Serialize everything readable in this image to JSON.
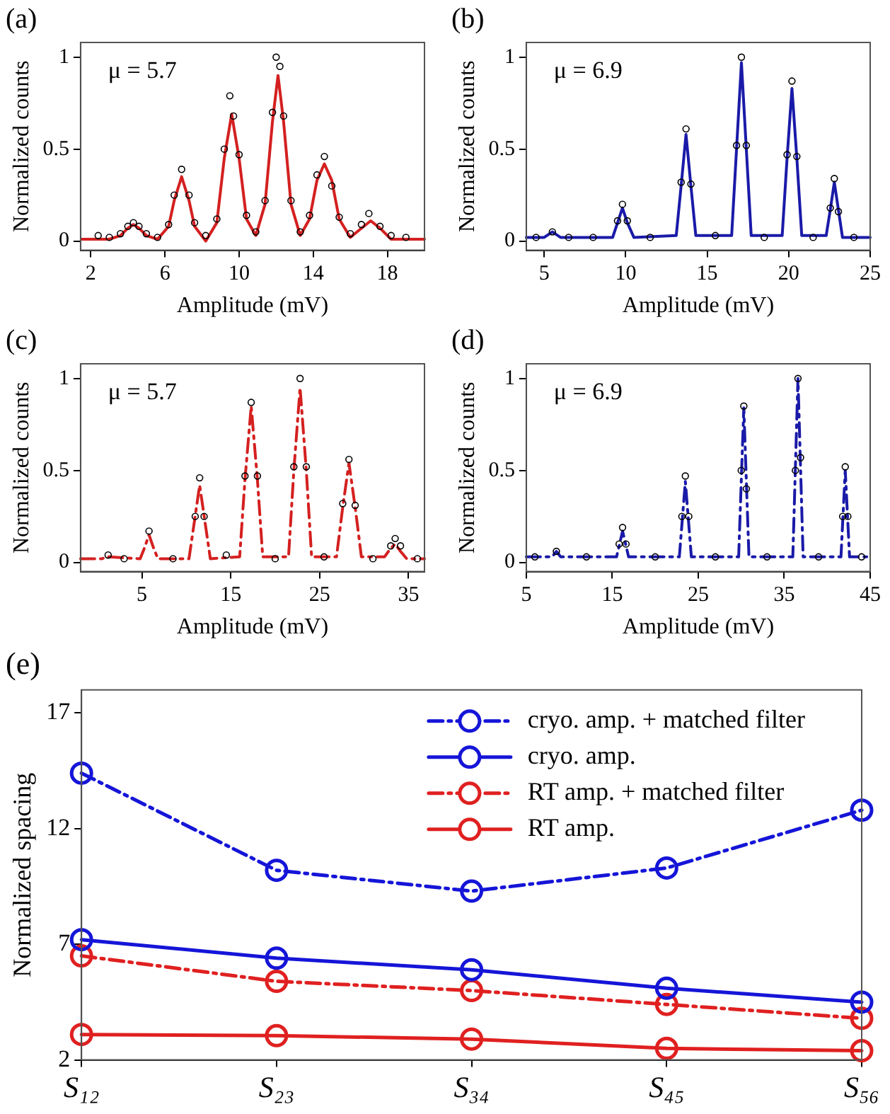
{
  "chart_data": [
    {
      "type": "line",
      "title": "(a)",
      "xlabel": "Amplitude (mV)",
      "ylabel": "Normalized counts",
      "annotations": [
        "μ = 5.7"
      ],
      "xlim": [
        1.45,
        20
      ],
      "xticks": [
        2,
        6,
        10,
        14,
        18
      ],
      "ylim": [
        -0.05,
        1.08
      ],
      "yticks": [
        0,
        0.5,
        1
      ],
      "series": [
        {
          "type": "scatter",
          "color": "#000000",
          "marker": "circle",
          "x": [
            2.4,
            3.0,
            3.6,
            4.0,
            4.3,
            4.6,
            5.0,
            5.6,
            6.2,
            6.5,
            6.9,
            7.3,
            7.6,
            8.2,
            8.8,
            9.2,
            9.5,
            9.7,
            10.0,
            10.4,
            10.9,
            11.4,
            11.8,
            12.0,
            12.2,
            12.4,
            12.8,
            13.3,
            13.8,
            14.2,
            14.6,
            15.0,
            15.4,
            16.0,
            16.6,
            17.0,
            17.6,
            18.2,
            19.0
          ],
          "values": [
            0.03,
            0.02,
            0.04,
            0.08,
            0.1,
            0.08,
            0.04,
            0.02,
            0.09,
            0.25,
            0.39,
            0.25,
            0.1,
            0.03,
            0.12,
            0.5,
            0.79,
            0.68,
            0.47,
            0.14,
            0.05,
            0.22,
            0.7,
            1.0,
            0.95,
            0.68,
            0.22,
            0.05,
            0.14,
            0.36,
            0.46,
            0.3,
            0.13,
            0.04,
            0.09,
            0.15,
            0.08,
            0.03,
            0.02
          ]
        },
        {
          "type": "line",
          "color": "#d42020",
          "marker": "none",
          "line_style": "solid",
          "x": [
            1.5,
            3.0,
            3.6,
            4.0,
            4.3,
            4.6,
            5.0,
            5.6,
            6.2,
            6.5,
            6.9,
            7.3,
            7.6,
            8.2,
            8.8,
            9.2,
            9.6,
            10.0,
            10.4,
            10.9,
            11.4,
            11.8,
            12.1,
            12.4,
            12.8,
            13.3,
            13.8,
            14.2,
            14.6,
            15.0,
            15.4,
            16.0,
            16.6,
            17.1,
            17.6,
            18.2,
            20
          ],
          "values": [
            0.01,
            0.01,
            0.03,
            0.07,
            0.09,
            0.07,
            0.03,
            0.01,
            0.08,
            0.22,
            0.35,
            0.22,
            0.08,
            0.0,
            0.1,
            0.45,
            0.69,
            0.45,
            0.12,
            0.03,
            0.2,
            0.65,
            0.9,
            0.65,
            0.2,
            0.03,
            0.12,
            0.33,
            0.42,
            0.33,
            0.12,
            0.02,
            0.07,
            0.11,
            0.07,
            0.01,
            0.01
          ]
        }
      ]
    },
    {
      "type": "line",
      "title": "(b)",
      "xlabel": "Amplitude (mV)",
      "ylabel": "Normalized counts",
      "annotations": [
        "μ = 6.9"
      ],
      "xlim": [
        3.9,
        25
      ],
      "xticks": [
        5,
        10,
        15,
        20,
        25
      ],
      "ylim": [
        -0.05,
        1.08
      ],
      "yticks": [
        0,
        0.5,
        1
      ],
      "series": [
        {
          "type": "scatter",
          "color": "#000000",
          "marker": "circle",
          "x": [
            4.5,
            5.5,
            6.5,
            8.0,
            9.5,
            9.8,
            10.1,
            11.5,
            13.4,
            13.7,
            14.0,
            15.5,
            16.8,
            17.1,
            17.4,
            18.5,
            19.9,
            20.2,
            20.5,
            21.5,
            22.55,
            22.8,
            23.05,
            24
          ],
          "values": [
            0.02,
            0.05,
            0.02,
            0.02,
            0.11,
            0.2,
            0.11,
            0.02,
            0.32,
            0.61,
            0.31,
            0.03,
            0.52,
            1.0,
            0.52,
            0.02,
            0.47,
            0.87,
            0.46,
            0.02,
            0.18,
            0.34,
            0.16,
            0.02
          ]
        },
        {
          "type": "line",
          "color": "#1a1aa8",
          "marker": "none",
          "line_style": "solid",
          "x": [
            3.9,
            5.0,
            5.5,
            6.0,
            9.2,
            9.5,
            9.8,
            10.1,
            10.5,
            13.1,
            13.4,
            13.7,
            14.0,
            14.3,
            16.5,
            16.8,
            17.1,
            17.4,
            17.7,
            19.6,
            19.9,
            20.2,
            20.5,
            20.8,
            22.3,
            22.55,
            22.8,
            23.05,
            23.3,
            25
          ],
          "values": [
            0.02,
            0.02,
            0.05,
            0.02,
            0.02,
            0.1,
            0.18,
            0.1,
            0.02,
            0.03,
            0.3,
            0.58,
            0.3,
            0.03,
            0.03,
            0.5,
            0.97,
            0.5,
            0.03,
            0.03,
            0.45,
            0.83,
            0.45,
            0.03,
            0.03,
            0.17,
            0.32,
            0.17,
            0.02,
            0.02
          ]
        }
      ]
    },
    {
      "type": "line",
      "title": "(c)",
      "xlabel": "Amplitude (mV)",
      "ylabel": "Normalized counts",
      "annotations": [
        "μ = 5.7"
      ],
      "xlim": [
        -1.9,
        36.8
      ],
      "xticks": [
        5,
        15,
        25,
        35
      ],
      "ylim": [
        -0.05,
        1.08
      ],
      "yticks": [
        0,
        0.5,
        1
      ],
      "series": [
        {
          "type": "scatter",
          "color": "#000000",
          "marker": "circle",
          "x": [
            1.2,
            3.0,
            5.8,
            8.5,
            11.0,
            11.5,
            12.0,
            14.5,
            16.6,
            17.3,
            18.0,
            20.0,
            22.1,
            22.8,
            23.5,
            25.5,
            27.6,
            28.3,
            29.0,
            31.0,
            33.0,
            33.5,
            34.1,
            36
          ],
          "values": [
            0.04,
            0.02,
            0.17,
            0.02,
            0.25,
            0.46,
            0.25,
            0.04,
            0.47,
            0.87,
            0.47,
            0.02,
            0.52,
            1.0,
            0.52,
            0.03,
            0.32,
            0.56,
            0.31,
            0.02,
            0.09,
            0.13,
            0.09,
            0.02
          ]
        },
        {
          "type": "line",
          "color": "#d42020",
          "marker": "none",
          "line_style": "dashdot",
          "x": [
            -1.9,
            0.5,
            1.2,
            4.8,
            5.3,
            5.8,
            6.3,
            6.8,
            10.3,
            10.9,
            11.5,
            12.1,
            12.7,
            16.0,
            16.6,
            17.3,
            18.0,
            18.6,
            21.5,
            22.1,
            22.8,
            23.5,
            24.1,
            26.9,
            27.6,
            28.3,
            29.0,
            29.7,
            32.3,
            32.9,
            33.5,
            34.1,
            34.8,
            36.8
          ],
          "values": [
            0.02,
            0.02,
            0.03,
            0.02,
            0.08,
            0.15,
            0.08,
            0.02,
            0.02,
            0.22,
            0.42,
            0.22,
            0.02,
            0.03,
            0.45,
            0.85,
            0.45,
            0.03,
            0.03,
            0.5,
            0.95,
            0.5,
            0.03,
            0.03,
            0.3,
            0.54,
            0.3,
            0.03,
            0.03,
            0.07,
            0.1,
            0.06,
            0.02,
            0.02
          ]
        }
      ]
    },
    {
      "type": "line",
      "title": "(d)",
      "xlabel": "Amplitude (mV)",
      "ylabel": "Normalized counts",
      "annotations": [
        "μ = 6.9"
      ],
      "xlim": [
        5,
        45
      ],
      "xticks": [
        5,
        15,
        25,
        35,
        45
      ],
      "ylim": [
        -0.05,
        1.08
      ],
      "yticks": [
        0,
        0.5,
        1
      ],
      "series": [
        {
          "type": "scatter",
          "color": "#000000",
          "marker": "circle",
          "x": [
            6,
            8.5,
            12,
            15.8,
            16.2,
            16.6,
            20,
            23.1,
            23.5,
            23.9,
            27,
            30.0,
            30.3,
            30.6,
            33,
            36.3,
            36.6,
            36.9,
            39,
            41.8,
            42.1,
            42.4,
            44
          ],
          "values": [
            0.03,
            0.06,
            0.03,
            0.1,
            0.19,
            0.1,
            0.03,
            0.25,
            0.47,
            0.25,
            0.03,
            0.5,
            0.85,
            0.4,
            0.03,
            0.5,
            1.0,
            0.57,
            0.03,
            0.25,
            0.52,
            0.25,
            0.03
          ]
        },
        {
          "type": "line",
          "color": "#1a1aa8",
          "marker": "none",
          "line_style": "dashdot",
          "x": [
            5,
            8.0,
            8.5,
            9.0,
            15.5,
            16.2,
            16.9,
            22.8,
            23.5,
            24.2,
            29.7,
            30.3,
            30.9,
            36.0,
            36.6,
            37.2,
            41.6,
            42.1,
            42.6,
            45
          ],
          "values": [
            0.03,
            0.03,
            0.06,
            0.03,
            0.03,
            0.17,
            0.03,
            0.03,
            0.44,
            0.03,
            0.03,
            0.84,
            0.03,
            0.03,
            1.0,
            0.03,
            0.03,
            0.5,
            0.03,
            0.03
          ]
        }
      ]
    },
    {
      "type": "line",
      "title": "(e)",
      "ylabel": "Normalized spacing",
      "categories": [
        "S₁₂",
        "S₂₃",
        "S₃₄",
        "S₄₅",
        "S₅₆"
      ],
      "ylim": [
        2,
        18
      ],
      "yticks": [
        2,
        7,
        12,
        17
      ],
      "legend": "top right",
      "marker": "circle",
      "series": [
        {
          "name": "cryo. amp. + matched filter",
          "color": "#1515d8",
          "line_style": "dashdot",
          "values": [
            14.4,
            10.2,
            9.3,
            10.3,
            12.8
          ]
        },
        {
          "name": "cryo. amp.",
          "color": "#1515d8",
          "line_style": "solid",
          "values": [
            7.2,
            6.4,
            5.9,
            5.1,
            4.5
          ]
        },
        {
          "name": "RT amp. + matched filter",
          "color": "#e02020",
          "line_style": "dashdot",
          "values": [
            6.5,
            5.4,
            5.0,
            4.4,
            3.8
          ]
        },
        {
          "name": "RT amp.",
          "color": "#e02020",
          "line_style": "solid",
          "values": [
            3.1,
            3.05,
            2.9,
            2.5,
            2.4
          ]
        }
      ]
    }
  ]
}
